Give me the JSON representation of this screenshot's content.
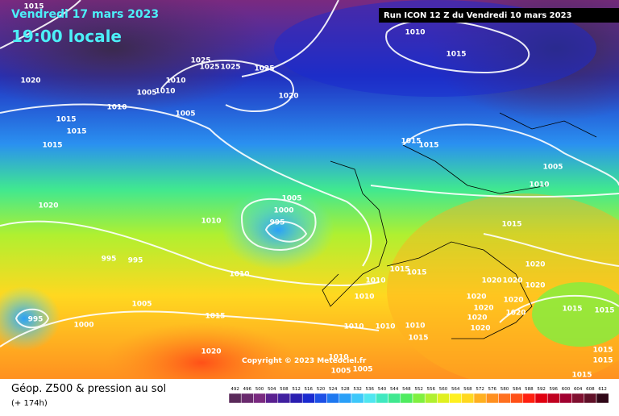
{
  "header": {
    "date": "Vendredi 17 mars 2023",
    "time": "19:00 locale",
    "run": "Run ICON 12 Z du Vendredi 10 mars 2023"
  },
  "copyright": "Copyright © 2023 Meteociel.fr",
  "footer": {
    "title": "Géop. Z500 & pression au sol",
    "lead": "(+ 174h)"
  },
  "isobar_labels": [
    "1015",
    "1020",
    "1010",
    "1005",
    "1010",
    "1015",
    "1015",
    "1015",
    "1025",
    "1025",
    "1025",
    "1025",
    "1010",
    "1005",
    "1020",
    "1010",
    "1015",
    "1015",
    "1015",
    "1005",
    "1010",
    "1020",
    "1005",
    "1000",
    "995",
    "1010",
    "1015",
    "995",
    "995",
    "1010",
    "1010",
    "1015",
    "1015",
    "1020",
    "1020",
    "1020",
    "1020",
    "1005",
    "1010",
    "1020",
    "1020",
    "1020",
    "1020",
    "1015",
    "1015",
    "995",
    "1000",
    "1015",
    "1020",
    "1020",
    "1010",
    "1010",
    "1010",
    "1015",
    "1020",
    "1015",
    "1015",
    "1010",
    "1005",
    "1005",
    "1015"
  ],
  "colorbar": {
    "labels": [
      "492",
      "496",
      "500",
      "504",
      "508",
      "512",
      "516",
      "520",
      "524",
      "528",
      "532",
      "536",
      "540",
      "544",
      "548",
      "552",
      "556",
      "560",
      "564",
      "568",
      "572",
      "576",
      "580",
      "584",
      "588",
      "592",
      "596",
      "600",
      "604",
      "608",
      "612"
    ],
    "colors": [
      "#5a2a5a",
      "#6a2a6e",
      "#7a2a80",
      "#5a2090",
      "#4020a0",
      "#2a1eb0",
      "#1a2ad0",
      "#1e50e6",
      "#1e78f0",
      "#2aa0f8",
      "#3ec8fa",
      "#50e6f0",
      "#40e8c0",
      "#40e890",
      "#50ec60",
      "#80f040",
      "#b0f030",
      "#e0f020",
      "#fff020",
      "#ffd820",
      "#ffb020",
      "#ff9020",
      "#ff7020",
      "#ff5018",
      "#ff2010",
      "#e00010",
      "#c00020",
      "#a00030",
      "#801030",
      "#601028",
      "#300818"
    ]
  }
}
